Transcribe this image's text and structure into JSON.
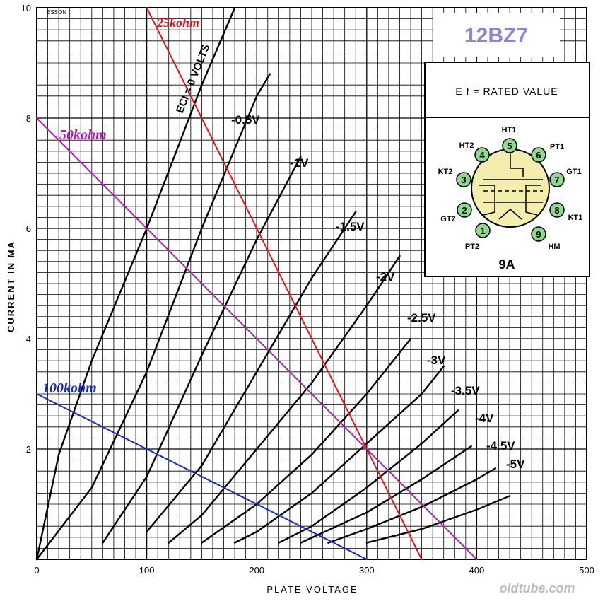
{
  "chart_data": {
    "type": "line",
    "title": "12BZ7",
    "corner_text": "ESSON",
    "xlabel": "PLATE VOLTAGE",
    "ylabel": "CURRENT IN MA",
    "xlim": [
      0,
      500
    ],
    "ylim": [
      0,
      10
    ],
    "x_ticks": [
      0,
      100,
      200,
      300,
      400,
      500
    ],
    "y_ticks": [
      2,
      4,
      6,
      8,
      10
    ],
    "x_tick_labels": [
      "0",
      "100",
      "200",
      "300",
      "400",
      "500"
    ],
    "y_tick_labels": [
      "2",
      "4",
      "6",
      "8",
      "10"
    ],
    "grid": true,
    "series": [
      {
        "name": "ECI = 0 VOLTS",
        "color": "#000000",
        "x": [
          0,
          20,
          50,
          100,
          150,
          180
        ],
        "y": [
          0,
          1.9,
          3.6,
          6.0,
          8.6,
          10.0
        ]
      },
      {
        "name": "-0.5V",
        "color": "#000000",
        "x": [
          0,
          50,
          100,
          150,
          200,
          212
        ],
        "y": [
          0,
          1.3,
          3.4,
          6.0,
          8.4,
          8.8
        ]
      },
      {
        "name": "-1V",
        "color": "#000000",
        "x": [
          60,
          100,
          150,
          200,
          240
        ],
        "y": [
          0.3,
          1.5,
          3.7,
          5.8,
          7.3
        ]
      },
      {
        "name": "-1.5V",
        "color": "#000000",
        "x": [
          100,
          150,
          200,
          250,
          290
        ],
        "y": [
          0.5,
          1.7,
          3.4,
          5.1,
          6.3
        ]
      },
      {
        "name": "-2V",
        "color": "#000000",
        "x": [
          120,
          150,
          200,
          250,
          300,
          330
        ],
        "y": [
          0.3,
          0.8,
          2.0,
          3.2,
          4.6,
          5.5
        ]
      },
      {
        "name": "-2.5V",
        "color": "#000000",
        "x": [
          150,
          200,
          250,
          300,
          340
        ],
        "y": [
          0.3,
          1.0,
          1.9,
          3.0,
          4.0
        ]
      },
      {
        "name": "-3V",
        "color": "#000000",
        "x": [
          180,
          200,
          250,
          300,
          350,
          370
        ],
        "y": [
          0.3,
          0.5,
          1.2,
          2.1,
          3.0,
          3.5
        ]
      },
      {
        "name": "-3.5V",
        "color": "#000000",
        "x": [
          220,
          250,
          300,
          350,
          383
        ],
        "y": [
          0.3,
          0.6,
          1.3,
          2.1,
          2.7
        ]
      },
      {
        "name": "-4V",
        "color": "#000000",
        "x": [
          240,
          300,
          350,
          395
        ],
        "y": [
          0.3,
          0.85,
          1.45,
          2.05
        ]
      },
      {
        "name": "-4.5V",
        "color": "#000000",
        "x": [
          265,
          300,
          350,
          400,
          417
        ],
        "y": [
          0.3,
          0.55,
          0.95,
          1.45,
          1.65
        ]
      },
      {
        "name": "-5V",
        "color": "#000000",
        "x": [
          300,
          350,
          400,
          430
        ],
        "y": [
          0.3,
          0.55,
          0.9,
          1.15
        ]
      },
      {
        "name": "25kohm",
        "color": "#e8101a",
        "x": [
          100,
          350
        ],
        "y": [
          10.0,
          0.0
        ]
      },
      {
        "name": "50kohm",
        "color": "#b01fb8",
        "x": [
          0,
          400
        ],
        "y": [
          8.0,
          0.0
        ]
      },
      {
        "name": "100kohm",
        "color": "#1a2cb8",
        "x": [
          0,
          300
        ],
        "y": [
          3.0,
          0.0
        ]
      }
    ],
    "annotations": {
      "heater": "E f = RATED VALUE",
      "base": "9A",
      "watermark": "oldtube.com"
    },
    "pins": [
      "PT2",
      "GT2",
      "KT2",
      "HT2",
      "HT1",
      "PT1",
      "GT1",
      "KT1",
      "HM"
    ],
    "pin_numbers": [
      "1",
      "2",
      "3",
      "4",
      "5",
      "6",
      "7",
      "8",
      "9"
    ]
  }
}
